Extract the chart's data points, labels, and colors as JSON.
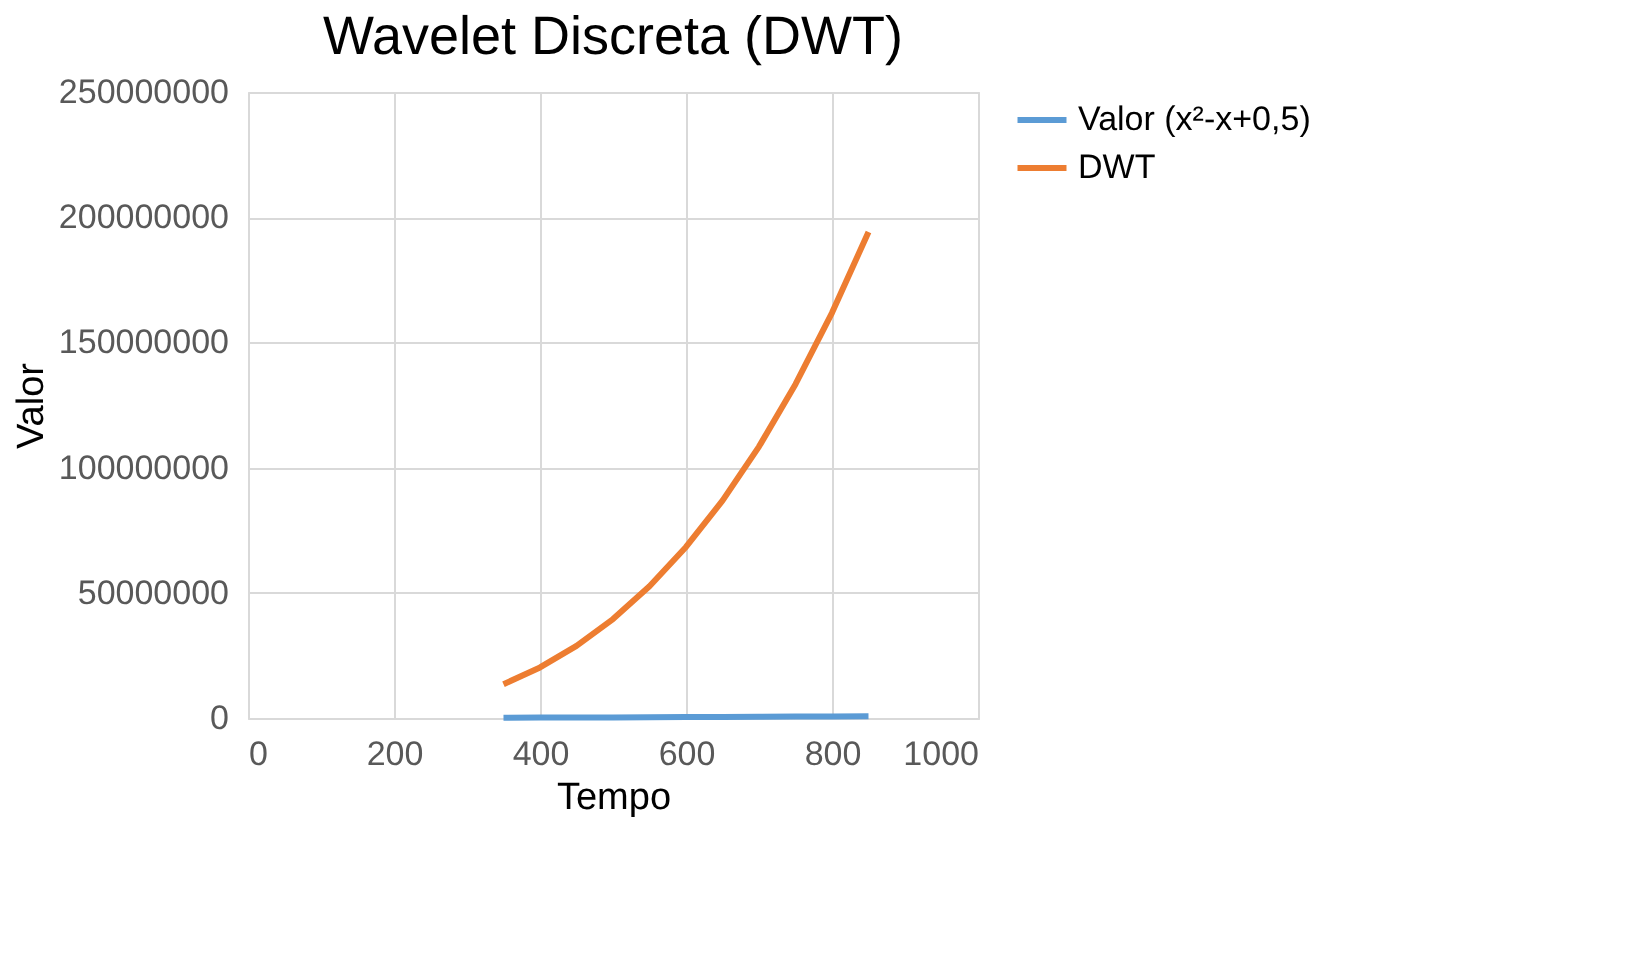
{
  "chart_data": {
    "type": "line",
    "title": "Wavelet Discreta (DWT)",
    "xlabel": "Tempo",
    "ylabel": "Valor",
    "x": [
      350,
      400,
      450,
      500,
      550,
      600,
      650,
      700,
      750,
      800,
      850
    ],
    "series": [
      {
        "name": "Valor (x²-x+0,5)",
        "color": "#5b9bd5",
        "values": [
          100000,
          200000,
          200000,
          200000,
          300000,
          400000,
          400000,
          500000,
          600000,
          600000,
          700000
        ]
      },
      {
        "name": "DWT",
        "color": "#ed7d31",
        "values": [
          13500000,
          20200000,
          28800000,
          39500000,
          52600000,
          68300000,
          86800000,
          108400000,
          133300000,
          161800000,
          194100000
        ]
      }
    ],
    "xlim": [
      0,
      1000
    ],
    "xticks": [
      0,
      200,
      400,
      600,
      800,
      1000
    ],
    "ylim": [
      0,
      250000000
    ],
    "yticks": [
      0,
      50000000,
      100000000,
      150000000,
      200000000,
      250000000
    ],
    "grid": true,
    "legend": "right",
    "marker": "none",
    "line_style": "solid"
  }
}
